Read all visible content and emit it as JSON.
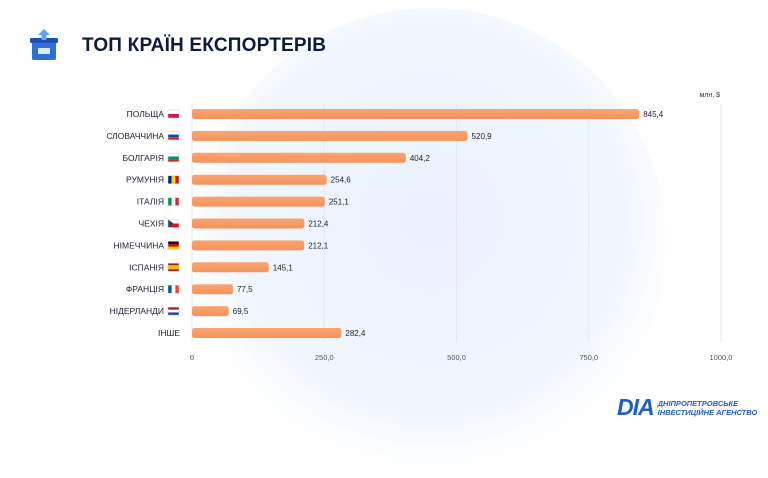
{
  "header": {
    "title": "ТОП КРАЇН ЕКСПОРТЕРІВ",
    "icon": "box-export-icon"
  },
  "chart_data": {
    "type": "bar",
    "orientation": "horizontal",
    "unit_label": "млн, $",
    "categories": [
      "ПОЛЬЩА",
      "СЛОВАЧЧИНА",
      "БОЛГАРІЯ",
      "РУМУНІЯ",
      "ІТАЛІЯ",
      "ЧЕХІЯ",
      "НІМЕЧЧИНА",
      "ІСПАНІЯ",
      "ФРАНЦІЯ",
      "НІДЕРЛАНДИ",
      "ІНШЕ"
    ],
    "values": [
      845.4,
      520.9,
      404.2,
      254.6,
      251.1,
      212.4,
      212.1,
      145.1,
      77.5,
      69.5,
      282.4
    ],
    "value_labels": [
      "845,4",
      "520,9",
      "404,2",
      "254,6",
      "251,1",
      "212,4",
      "212,1",
      "145,1",
      "77,5",
      "69,5",
      "282,4"
    ],
    "flags": [
      "pl",
      "sk",
      "bg",
      "ro",
      "it",
      "cz",
      "de",
      "es",
      "fr",
      "nl",
      ""
    ],
    "xlim": [
      0,
      1000
    ],
    "ticks": [
      0,
      250,
      500,
      750,
      1000
    ],
    "tick_labels": [
      "0",
      "250,0",
      "500,0",
      "750,0",
      "1000,0"
    ],
    "grid": true,
    "bar_color": "#f5925a"
  },
  "logo": {
    "mark": "DIA",
    "line1": "ДНІПРОПЕТРОВСЬКЕ",
    "line2": "ІНВЕСТИЦІЙНЕ АГЕНСТВО"
  }
}
